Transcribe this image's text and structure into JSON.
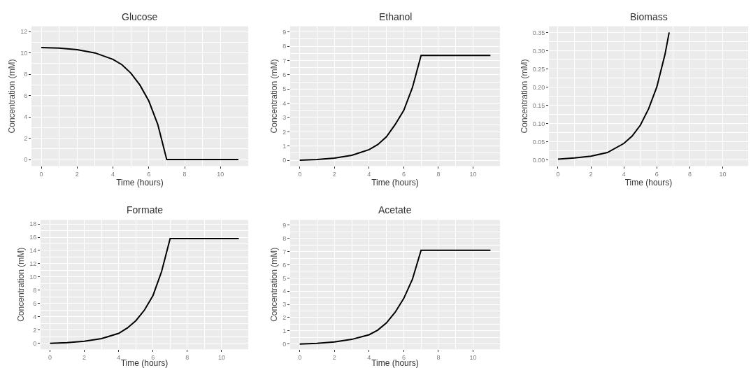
{
  "chart_data": [
    {
      "type": "line",
      "title": "Glucose",
      "xlabel": "Time (hours)",
      "ylabel": "Concentration (mM)",
      "xlim": [
        -0.55,
        11.55
      ],
      "ylim": [
        -0.6,
        12.5
      ],
      "xticks": [
        0,
        2,
        4,
        6,
        8,
        10
      ],
      "yticks": [
        0,
        2,
        4,
        6,
        8,
        10,
        12
      ],
      "grid": true,
      "series": [
        {
          "color": "#000000",
          "x": [
            0,
            1,
            2,
            3,
            4,
            4.5,
            5,
            5.5,
            6,
            6.5,
            7,
            11
          ],
          "values": [
            10.5,
            10.45,
            10.3,
            10.0,
            9.4,
            8.9,
            8.1,
            7.0,
            5.5,
            3.3,
            0,
            0
          ]
        }
      ]
    },
    {
      "type": "line",
      "title": "Ethanol",
      "xlabel": "Time (hours)",
      "ylabel": "Concentration (mM)",
      "xlim": [
        -0.55,
        11.55
      ],
      "ylim": [
        -0.4,
        9.4
      ],
      "xticks": [
        0,
        2,
        4,
        6,
        8,
        10
      ],
      "yticks": [
        0,
        1,
        2,
        3,
        4,
        5,
        6,
        7,
        8,
        9
      ],
      "grid": true,
      "series": [
        {
          "color": "#000000",
          "x": [
            0,
            1,
            2,
            3,
            4,
            4.5,
            5,
            5.5,
            6,
            6.5,
            7,
            11
          ],
          "values": [
            0,
            0.05,
            0.15,
            0.35,
            0.75,
            1.1,
            1.65,
            2.5,
            3.5,
            5.1,
            7.35,
            7.35
          ]
        }
      ]
    },
    {
      "type": "line",
      "title": "Biomass",
      "xlabel": "Time (hours)",
      "ylabel": "Concentration (mM)",
      "xlim": [
        -0.55,
        11.55
      ],
      "ylim": [
        -0.017,
        0.367
      ],
      "xticks": [
        0,
        2,
        4,
        6,
        8,
        10
      ],
      "yticks": [
        {
          "value": 0,
          "label": "0.00"
        },
        {
          "value": 0.05,
          "label": "0.05"
        },
        {
          "value": 0.1,
          "label": "0.10"
        },
        {
          "value": 0.15,
          "label": "0.15"
        },
        {
          "value": 0.2,
          "label": "0.20"
        },
        {
          "value": 0.25,
          "label": "0.25"
        },
        {
          "value": 0.3,
          "label": "0.30"
        },
        {
          "value": 0.35,
          "label": "0.35"
        }
      ],
      "grid": true,
      "series": [
        {
          "color": "#000000",
          "x": [
            0,
            1,
            2,
            3,
            4,
            4.5,
            5,
            5.5,
            6,
            6.5,
            6.75
          ],
          "values": [
            0.002,
            0.005,
            0.01,
            0.02,
            0.045,
            0.065,
            0.095,
            0.14,
            0.2,
            0.29,
            0.35
          ]
        }
      ]
    },
    {
      "type": "line",
      "title": "Formate",
      "xlabel": "Time (hours)",
      "ylabel": "Concentration (mM)",
      "xlim": [
        -0.55,
        11.55
      ],
      "ylim": [
        -0.9,
        18.6
      ],
      "xticks": [
        0,
        2,
        4,
        6,
        8,
        10
      ],
      "yticks": [
        0,
        2,
        4,
        6,
        8,
        10,
        12,
        14,
        16,
        18
      ],
      "grid": true,
      "series": [
        {
          "color": "#000000",
          "x": [
            0,
            1,
            2,
            3,
            4,
            4.5,
            5,
            5.5,
            6,
            6.5,
            7,
            11
          ],
          "values": [
            0,
            0.1,
            0.3,
            0.7,
            1.5,
            2.3,
            3.4,
            5.0,
            7.2,
            10.8,
            15.8,
            15.8
          ]
        }
      ]
    },
    {
      "type": "line",
      "title": "Acetate",
      "xlabel": "Time (hours)",
      "ylabel": "Concentration (mM)",
      "xlim": [
        -0.55,
        11.55
      ],
      "ylim": [
        -0.4,
        9.4
      ],
      "xticks": [
        0,
        2,
        4,
        6,
        8,
        10
      ],
      "yticks": [
        0,
        1,
        2,
        3,
        4,
        5,
        6,
        7,
        8,
        9
      ],
      "grid": true,
      "series": [
        {
          "color": "#000000",
          "x": [
            0,
            1,
            2,
            3,
            4,
            4.5,
            5,
            5.5,
            6,
            6.5,
            7,
            11
          ],
          "values": [
            0,
            0.05,
            0.15,
            0.35,
            0.7,
            1.05,
            1.6,
            2.4,
            3.45,
            4.9,
            7.1,
            7.1
          ]
        }
      ]
    }
  ]
}
